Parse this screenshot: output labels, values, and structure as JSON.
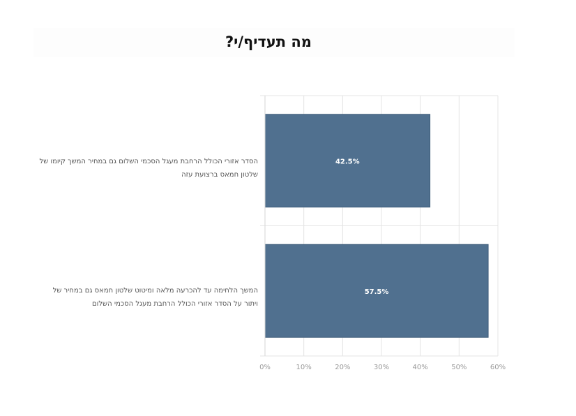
{
  "chart_data": {
    "type": "bar",
    "orientation": "horizontal",
    "title": "מה תעדיף/י?",
    "categories": [
      "הסדר אזורי הכולל הרחבת מעגל הסכמי השלום גם במחיר המשך קיומו של שלטון חמאס ברצועת עזה",
      "המשך הלחימה עד להכרעה מלאה ומיטוט שלטון חמאס גם במחיר של ויתור על הסדר אזורי הכולל הרחבת מעגל הסכמי השלום"
    ],
    "values": [
      42.5,
      57.5
    ],
    "value_labels": [
      "42.5%",
      "57.5%"
    ],
    "xlim": [
      0,
      60
    ],
    "x_ticks": [
      "0%",
      "10%",
      "20%",
      "30%",
      "40%",
      "50%",
      "60%"
    ],
    "grid": true,
    "colors": {
      "bar": "#50708f",
      "grid": "#e4e4e4",
      "axis_text": "#999999"
    }
  }
}
